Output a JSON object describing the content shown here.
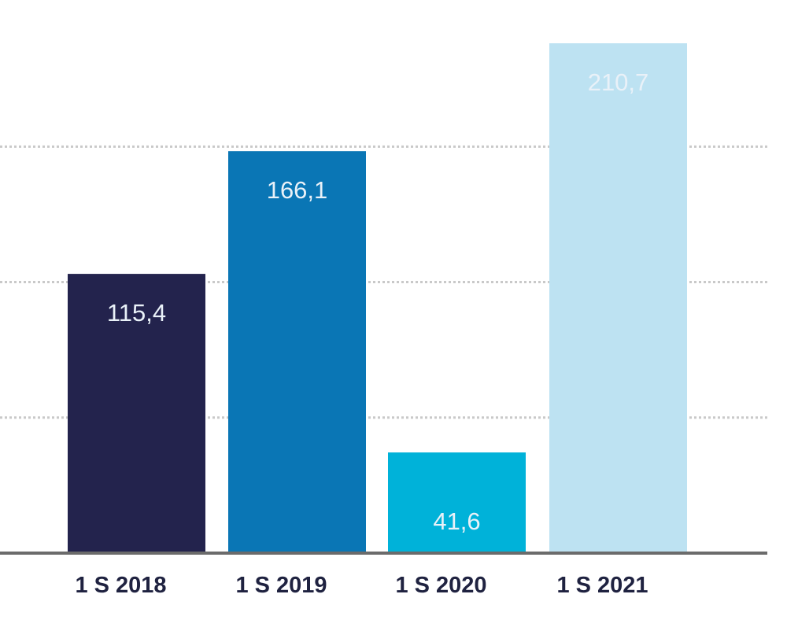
{
  "chart_data": {
    "type": "bar",
    "title": "",
    "xlabel": "",
    "ylabel": "",
    "categories": [
      "1 S 2018",
      "1 S 2019",
      "1 S 2020",
      "1 S 2021"
    ],
    "values": [
      115.4,
      166.1,
      41.6,
      210.7
    ],
    "value_labels": [
      "115,4",
      "166,1",
      "41,6",
      "210,7"
    ],
    "colors": [
      "#23234d",
      "#0a76b5",
      "#00b2d9",
      "#bde2f2"
    ],
    "ylim": [
      0,
      220
    ],
    "gridlines": [
      56,
      112,
      168
    ],
    "grid": true,
    "legend": "none"
  }
}
